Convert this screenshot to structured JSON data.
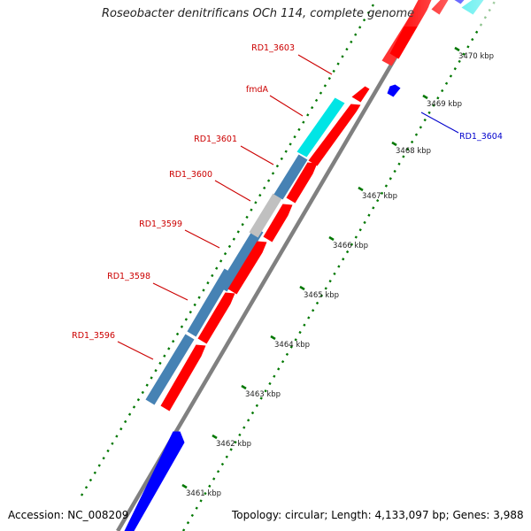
{
  "title": "Roseobacter denitrificans OCh 114, complete genome",
  "footer": {
    "accession": "Accession: NC_008209",
    "topology": "Topology: circular; Length: 4,133,097 bp; Genes: 3,988"
  },
  "scale": {
    "ticks": [
      "3461 kbp",
      "3462 kbp",
      "3463 kbp",
      "3464 kbp",
      "3465 kbp",
      "3466 kbp",
      "3467 kbp",
      "3468 kbp",
      "3469 kbp",
      "3470 kbp"
    ]
  },
  "colors": {
    "forward_cds": "#ff0000",
    "reverse_cds": "#0000ff",
    "cog_blue": "#4682b4",
    "cog_cyan": "#00e5e5",
    "cog_gray": "#c0c0c0",
    "backbone": "#808080",
    "tick_green": "#007700",
    "label_red": "#cc0000",
    "label_blue": "#0000cc"
  },
  "gene_labels": [
    {
      "id": "RD1_3603",
      "color": "red"
    },
    {
      "id": "fmdA",
      "color": "red"
    },
    {
      "id": "RD1_3601",
      "color": "red"
    },
    {
      "id": "RD1_3600",
      "color": "red"
    },
    {
      "id": "RD1_3599",
      "color": "red"
    },
    {
      "id": "RD1_3598",
      "color": "red"
    },
    {
      "id": "RD1_3596",
      "color": "red"
    },
    {
      "id": "RD1_3604",
      "color": "blue"
    }
  ]
}
